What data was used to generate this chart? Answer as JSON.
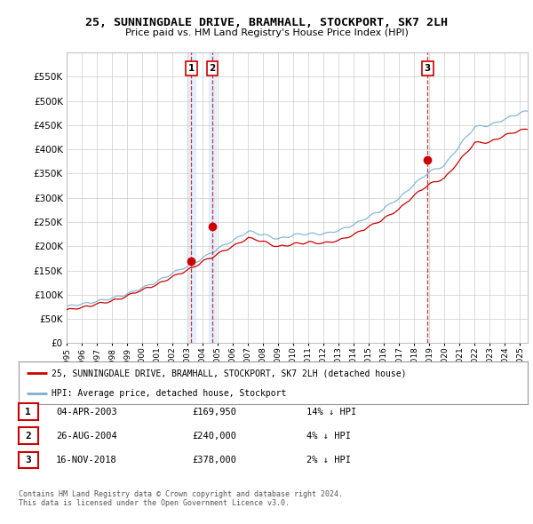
{
  "title": "25, SUNNINGDALE DRIVE, BRAMHALL, STOCKPORT, SK7 2LH",
  "subtitle": "Price paid vs. HM Land Registry's House Price Index (HPI)",
  "ytick_values": [
    0,
    50000,
    100000,
    150000,
    200000,
    250000,
    300000,
    350000,
    400000,
    450000,
    500000,
    550000
  ],
  "ylim": [
    0,
    600000
  ],
  "xlim_start": 1995.0,
  "xlim_end": 2025.5,
  "hpi_color": "#7bafd4",
  "price_color": "#cc0000",
  "marker_color": "#cc0000",
  "sale_dates_decimal": [
    2003.25,
    2004.65,
    2018.88
  ],
  "sale_prices": [
    169950,
    240000,
    378000
  ],
  "sale_labels": [
    "1",
    "2",
    "3"
  ],
  "legend_line1": "25, SUNNINGDALE DRIVE, BRAMHALL, STOCKPORT, SK7 2LH (detached house)",
  "legend_line2": "HPI: Average price, detached house, Stockport",
  "table_rows": [
    [
      "1",
      "04-APR-2003",
      "£169,950",
      "14% ↓ HPI"
    ],
    [
      "2",
      "26-AUG-2004",
      "£240,000",
      "4% ↓ HPI"
    ],
    [
      "3",
      "16-NOV-2018",
      "£378,000",
      "2% ↓ HPI"
    ]
  ],
  "footer": "Contains HM Land Registry data © Crown copyright and database right 2024.\nThis data is licensed under the Open Government Licence v3.0.",
  "background_color": "#ffffff",
  "grid_color": "#cccccc",
  "band_color": "#ddeeff"
}
